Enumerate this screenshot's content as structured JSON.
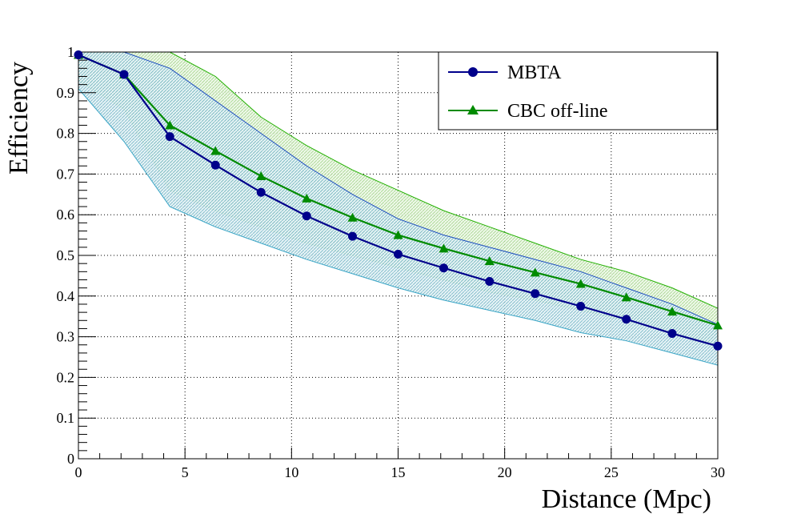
{
  "chart_data": {
    "type": "line",
    "title": "",
    "xlabel": "Distance (Mpc)",
    "ylabel": "Efficiency",
    "xlim": [
      0,
      30
    ],
    "ylim": [
      0,
      1
    ],
    "grid": true,
    "legend_position": "top-right",
    "x_ticks": [
      "0",
      "5",
      "10",
      "15",
      "20",
      "25",
      "30"
    ],
    "y_ticks": [
      "0",
      "0.1",
      "0.2",
      "0.3",
      "0.4",
      "0.5",
      "0.6",
      "0.7",
      "0.8",
      "0.9",
      "1"
    ],
    "series": [
      {
        "name": "MBTA",
        "color": "#00008b",
        "marker": "circle",
        "x": [
          0.0,
          2.14,
          4.29,
          6.43,
          8.57,
          10.71,
          12.86,
          15.0,
          17.14,
          19.29,
          21.43,
          23.57,
          25.71,
          27.86,
          30.0
        ],
        "values": [
          0.993,
          0.945,
          0.792,
          0.722,
          0.655,
          0.597,
          0.547,
          0.503,
          0.469,
          0.436,
          0.406,
          0.375,
          0.343,
          0.308,
          0.277
        ],
        "band_upper": [
          1.0,
          1.0,
          0.96,
          0.88,
          0.8,
          0.72,
          0.65,
          0.59,
          0.55,
          0.52,
          0.49,
          0.46,
          0.42,
          0.38,
          0.33
        ],
        "band_lower": [
          0.91,
          0.78,
          0.62,
          0.57,
          0.53,
          0.49,
          0.455,
          0.42,
          0.39,
          0.365,
          0.34,
          0.31,
          0.29,
          0.26,
          0.23
        ]
      },
      {
        "name": "CBC off-line",
        "color": "#008b00",
        "marker": "triangle",
        "x": [
          0.0,
          2.14,
          4.29,
          6.43,
          8.57,
          10.71,
          12.86,
          15.0,
          17.14,
          19.29,
          21.43,
          23.57,
          25.71,
          27.86,
          30.0
        ],
        "values": [
          0.993,
          0.945,
          0.82,
          0.757,
          0.695,
          0.64,
          0.593,
          0.55,
          0.517,
          0.486,
          0.458,
          0.43,
          0.397,
          0.362,
          0.328
        ],
        "band_upper": [
          1.0,
          1.0,
          1.0,
          0.94,
          0.84,
          0.77,
          0.71,
          0.66,
          0.61,
          0.57,
          0.53,
          0.49,
          0.46,
          0.42,
          0.37
        ],
        "band_lower": [
          0.93,
          0.86,
          0.66,
          0.61,
          0.57,
          0.53,
          0.5,
          0.47,
          0.44,
          0.41,
          0.39,
          0.365,
          0.34,
          0.31,
          0.28
        ]
      }
    ]
  }
}
